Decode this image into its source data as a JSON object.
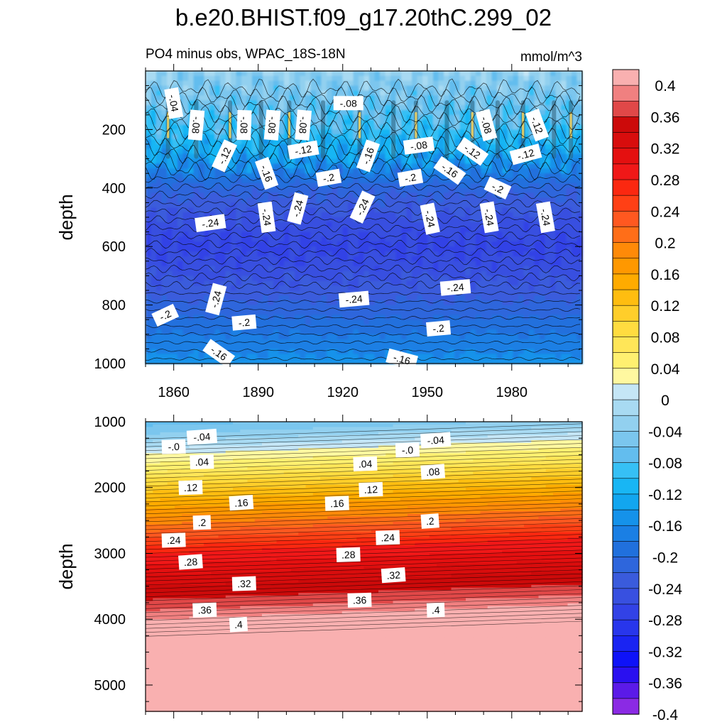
{
  "chart_data": [
    {
      "type": "heatmap",
      "name": "upper-panel",
      "title": "b.e20.BHIST.f09_g17.20thC.299_02",
      "subtitle_left": "PO4 minus obs, WPAC_18S-18N",
      "subtitle_right": "mmol/m^3",
      "ylabel": "depth",
      "xlabel": "",
      "xlim": [
        1850,
        2005
      ],
      "ylim": [
        0,
        1000
      ],
      "y_inverted": true,
      "x_ticks": [
        "1860",
        "1890",
        "1920",
        "1950",
        "1980"
      ],
      "x_tick_values": [
        1860,
        1890,
        1920,
        1950,
        1980
      ],
      "y_ticks": [
        "200",
        "400",
        "600",
        "800",
        "1000"
      ],
      "y_tick_values": [
        200,
        400,
        600,
        800,
        1000
      ],
      "depth_profile": [
        {
          "depth": 0,
          "value": -0.03
        },
        {
          "depth": 100,
          "value": -0.06
        },
        {
          "depth": 200,
          "value": -0.09
        },
        {
          "depth": 300,
          "value": -0.14
        },
        {
          "depth": 400,
          "value": -0.21
        },
        {
          "depth": 500,
          "value": -0.245
        },
        {
          "depth": 600,
          "value": -0.265
        },
        {
          "depth": 700,
          "value": -0.245
        },
        {
          "depth": 800,
          "value": -0.215
        },
        {
          "depth": 900,
          "value": -0.18
        },
        {
          "depth": 1000,
          "value": -0.15
        }
      ],
      "contour_labels": [
        {
          "text": "-.04",
          "year": 1860,
          "depth": 110
        },
        {
          "text": "-.08",
          "year": 1868,
          "depth": 185
        },
        {
          "text": "-.08",
          "year": 1885,
          "depth": 185
        },
        {
          "text": "-.08",
          "year": 1895,
          "depth": 185
        },
        {
          "text": "-.08",
          "year": 1906,
          "depth": 185
        },
        {
          "text": "-.08",
          "year": 1922,
          "depth": 110
        },
        {
          "text": "-.08",
          "year": 1947,
          "depth": 255
        },
        {
          "text": "-.08",
          "year": 1971,
          "depth": 185
        },
        {
          "text": "-.12",
          "year": 1989,
          "depth": 185
        },
        {
          "text": "-.12",
          "year": 1878,
          "depth": 290
        },
        {
          "text": "-.12",
          "year": 1906,
          "depth": 270
        },
        {
          "text": "-.12",
          "year": 1966,
          "depth": 275
        },
        {
          "text": "-.12",
          "year": 1985,
          "depth": 285
        },
        {
          "text": "-.16",
          "year": 1893,
          "depth": 350
        },
        {
          "text": "-.16",
          "year": 1929,
          "depth": 290
        },
        {
          "text": "-.16",
          "year": 1958,
          "depth": 340
        },
        {
          "text": "-.2",
          "year": 1915,
          "depth": 365
        },
        {
          "text": "-.2",
          "year": 1944,
          "depth": 365
        },
        {
          "text": "-.2",
          "year": 1975,
          "depth": 400
        },
        {
          "text": "-.24",
          "year": 1873,
          "depth": 520
        },
        {
          "text": "-.24",
          "year": 1893,
          "depth": 500
        },
        {
          "text": "-.24",
          "year": 1904,
          "depth": 470
        },
        {
          "text": "-.24",
          "year": 1927,
          "depth": 465
        },
        {
          "text": "-.24",
          "year": 1951,
          "depth": 505
        },
        {
          "text": "-.24",
          "year": 1972,
          "depth": 500
        },
        {
          "text": "-.24",
          "year": 1992,
          "depth": 500
        },
        {
          "text": "-.24",
          "year": 1875,
          "depth": 780
        },
        {
          "text": "-.24",
          "year": 1924,
          "depth": 780
        },
        {
          "text": "-.24",
          "year": 1960,
          "depth": 740
        },
        {
          "text": "-.2",
          "year": 1857,
          "depth": 835
        },
        {
          "text": "-.2",
          "year": 1885,
          "depth": 860
        },
        {
          "text": "-.2",
          "year": 1954,
          "depth": 880
        },
        {
          "text": "-.16",
          "year": 1876,
          "depth": 965
        },
        {
          "text": "-.16",
          "year": 1941,
          "depth": 985
        }
      ]
    },
    {
      "type": "heatmap",
      "name": "lower-panel",
      "ylabel": "depth",
      "xlim": [
        1850,
        2005
      ],
      "ylim": [
        1000,
        5400
      ],
      "y_inverted": true,
      "y_ticks": [
        "1000",
        "2000",
        "3000",
        "4000",
        "5000"
      ],
      "y_tick_values": [
        1000,
        2000,
        3000,
        4000,
        5000
      ],
      "depth_profile": [
        {
          "depth": 1000,
          "value": -0.07
        },
        {
          "depth": 1250,
          "value": -0.03
        },
        {
          "depth": 1500,
          "value": 0.02
        },
        {
          "depth": 1750,
          "value": 0.06
        },
        {
          "depth": 2000,
          "value": 0.11
        },
        {
          "depth": 2500,
          "value": 0.19
        },
        {
          "depth": 3000,
          "value": 0.28
        },
        {
          "depth": 3500,
          "value": 0.34
        },
        {
          "depth": 3800,
          "value": 0.37
        },
        {
          "depth": 4000,
          "value": 0.4
        },
        {
          "depth": 5400,
          "value": 0.42
        }
      ],
      "contour_labels": [
        {
          "text": "-.04",
          "year": 1870,
          "depth": 1230
        },
        {
          "text": "-.0",
          "year": 1860,
          "depth": 1380
        },
        {
          "text": ".04",
          "year": 1870,
          "depth": 1610
        },
        {
          "text": "-.04",
          "year": 1953,
          "depth": 1280
        },
        {
          "text": "-.0",
          "year": 1943,
          "depth": 1430
        },
        {
          "text": ".04",
          "year": 1928,
          "depth": 1640
        },
        {
          "text": ".08",
          "year": 1952,
          "depth": 1760
        },
        {
          "text": ".12",
          "year": 1866,
          "depth": 2000
        },
        {
          "text": ".12",
          "year": 1930,
          "depth": 2030
        },
        {
          "text": ".16",
          "year": 1884,
          "depth": 2230
        },
        {
          "text": ".16",
          "year": 1918,
          "depth": 2240
        },
        {
          "text": ".2",
          "year": 1870,
          "depth": 2530
        },
        {
          "text": ".2",
          "year": 1951,
          "depth": 2510
        },
        {
          "text": ".24",
          "year": 1860,
          "depth": 2800
        },
        {
          "text": ".24",
          "year": 1936,
          "depth": 2760
        },
        {
          "text": ".28",
          "year": 1866,
          "depth": 3130
        },
        {
          "text": ".28",
          "year": 1922,
          "depth": 3020
        },
        {
          "text": ".32",
          "year": 1885,
          "depth": 3460
        },
        {
          "text": ".32",
          "year": 1938,
          "depth": 3330
        },
        {
          "text": ".36",
          "year": 1871,
          "depth": 3860
        },
        {
          "text": ".36",
          "year": 1926,
          "depth": 3710
        },
        {
          "text": ".4",
          "year": 1883,
          "depth": 4080
        },
        {
          "text": ".4",
          "year": 1953,
          "depth": 3860
        }
      ]
    }
  ],
  "colorbar": {
    "labels": [
      "0.4",
      "0.36",
      "0.32",
      "0.28",
      "0.24",
      "0.2",
      "0.16",
      "0.12",
      "0.08",
      "0.04",
      "0",
      "-0.04",
      "-0.08",
      "-0.12",
      "-0.16",
      "-0.2",
      "-0.24",
      "-0.28",
      "-0.32",
      "-0.36",
      "-0.4"
    ],
    "colors": [
      "#f9b0b0",
      "#f08080",
      "#e04848",
      "#cc0a0a",
      "#d80d0d",
      "#e41010",
      "#f01818",
      "#fb2810",
      "#ff4015",
      "#ff5820",
      "#ff6e18",
      "#ff8a08",
      "#ff9800",
      "#ffab00",
      "#ffbd10",
      "#ffce2a",
      "#ffdc40",
      "#ffe658",
      "#fff070",
      "#fff8a0",
      "#c5e6f6",
      "#a8daf2",
      "#92d0ef",
      "#7bc6ee",
      "#63bdee",
      "#36c0f5",
      "#18b6f4",
      "#12a6ef",
      "#1592ea",
      "#1a7fe4",
      "#2070dd",
      "#2e66dc",
      "#3a5bdc",
      "#3850e0",
      "#3242e6",
      "#2836ec",
      "#1a24f2",
      "#0e12f8",
      "#2a10f0",
      "#5b1ae8",
      "#8b2ae4"
    ]
  }
}
